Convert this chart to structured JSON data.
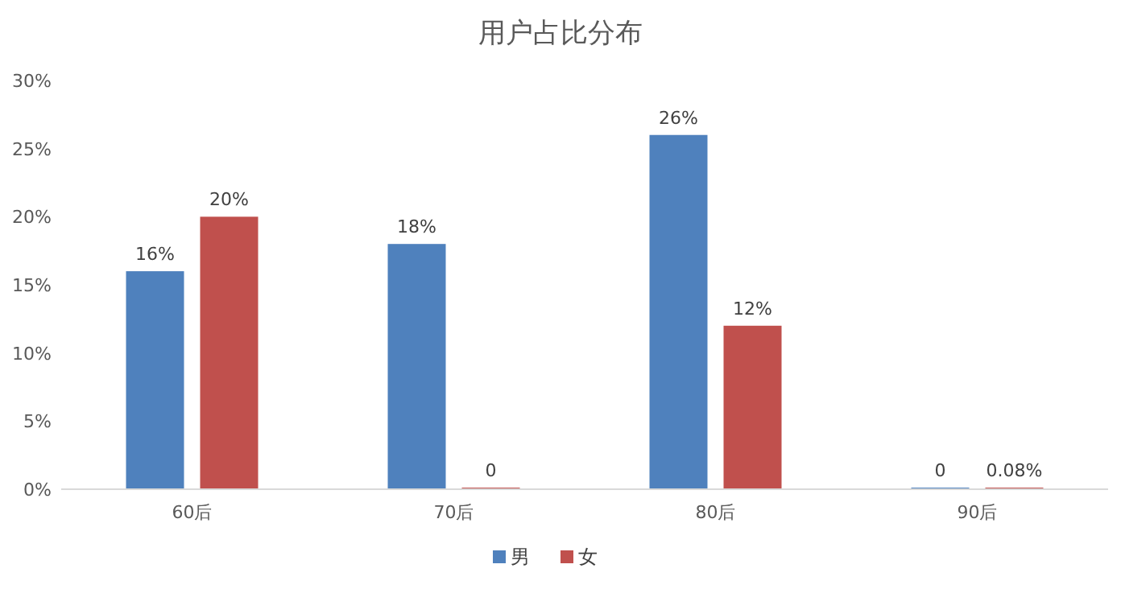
{
  "chart_data": {
    "type": "bar",
    "title": "用户占比分布",
    "categories": [
      "60后",
      "70后",
      "80后",
      "90后"
    ],
    "series": [
      {
        "name": "男",
        "color": "#4f81bd",
        "values": [
          16,
          18,
          26,
          0
        ],
        "value_labels": [
          "16%",
          "18%",
          "26%",
          "0"
        ]
      },
      {
        "name": "女",
        "color": "#c0504d",
        "values": [
          20,
          0,
          12,
          0.08
        ],
        "value_labels": [
          "20%",
          "0",
          "12%",
          "0.08%"
        ]
      }
    ],
    "ylim": [
      0,
      30
    ],
    "yticks": [
      {
        "value": 0,
        "label": "0%"
      },
      {
        "value": 5,
        "label": "5%"
      },
      {
        "value": 10,
        "label": "10%"
      },
      {
        "value": 15,
        "label": "15%"
      },
      {
        "value": 20,
        "label": "20%"
      },
      {
        "value": 25,
        "label": "25%"
      },
      {
        "value": 30,
        "label": "30%"
      }
    ],
    "grid": false,
    "legend": "bottom"
  }
}
